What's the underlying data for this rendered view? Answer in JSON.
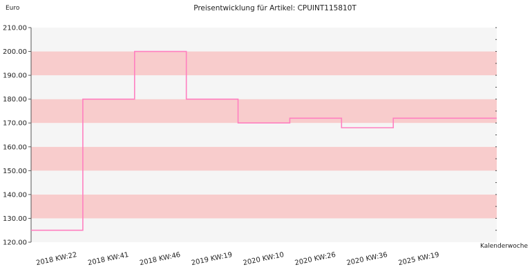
{
  "chart_data": {
    "type": "line",
    "step": true,
    "title": "Preisentwicklung für Artikel: CPUINT115810T",
    "ylabel": "Euro",
    "xlabel": "Kalenderwoche",
    "ylim": [
      120,
      210
    ],
    "yticks": [
      "120.00",
      "130.00",
      "140.00",
      "150.00",
      "160.00",
      "170.00",
      "180.00",
      "190.00",
      "200.00",
      "210.00"
    ],
    "categories": [
      "2018 KW:22",
      "2018 KW:41",
      "2018 KW:46",
      "2019 KW:19",
      "2020 KW:10",
      "2020 KW:26",
      "2020 KW:36",
      "2025 KW:19"
    ],
    "series": [
      {
        "values": [
          125,
          180,
          200,
          180,
          170,
          172,
          168,
          172
        ]
      }
    ],
    "colors": {
      "line": "#ff7fc0",
      "band_pink": "#f8cccc",
      "band_light": "#f5f5f5"
    },
    "grid": false
  }
}
